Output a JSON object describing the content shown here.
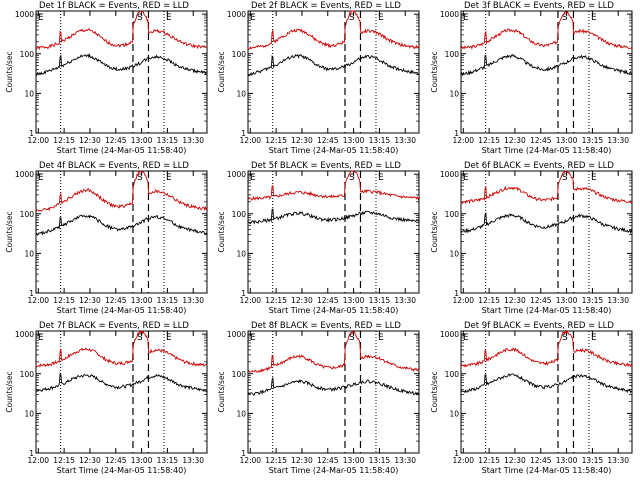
{
  "colors": {
    "events": "#000000",
    "lld": "#cc0000",
    "axis": "#000000"
  },
  "common": {
    "ylabel": "Counts/sec",
    "xlabel": "Start Time (24-Mar-05 11:58:40)",
    "x_ticks": [
      "12:00",
      "12:15",
      "12:30",
      "12:45",
      "13:00",
      "13:15",
      "13:30"
    ],
    "y_ticks": [
      "1",
      "10",
      "100",
      "1000"
    ],
    "markers": [
      "E",
      "S",
      "E"
    ]
  },
  "chart_data": [
    {
      "type": "line",
      "title": "Det 1f BLACK = Events, RED = LLD",
      "xlim": [
        "11:58:40",
        "13:38"
      ],
      "ylim": [
        1,
        1200
      ],
      "y_scale": "log",
      "dotted_at": [
        "11:58:40",
        "12:13",
        "13:13"
      ],
      "dashed_at": [
        "12:55",
        "13:04"
      ],
      "events_profile": [
        30,
        33,
        38,
        45,
        55,
        70,
        85,
        90,
        75,
        55,
        45,
        40,
        42,
        48,
        58,
        75,
        85,
        80,
        65,
        50,
        42,
        38,
        35,
        32
      ],
      "lld_profile": [
        140,
        145,
        155,
        180,
        230,
        300,
        380,
        400,
        330,
        230,
        180,
        160,
        170,
        200,
        260,
        330,
        380,
        360,
        290,
        220,
        180,
        160,
        150,
        145
      ]
    },
    {
      "type": "line",
      "title": "Det 2f BLACK = Events, RED = LLD",
      "xlim": [
        "11:58:40",
        "13:38"
      ],
      "ylim": [
        1,
        1200
      ],
      "y_scale": "log",
      "dotted_at": [
        "11:58:40",
        "12:13",
        "13:13"
      ],
      "dashed_at": [
        "12:55",
        "13:04"
      ],
      "events_profile": [
        30,
        33,
        38,
        45,
        55,
        70,
        85,
        90,
        75,
        55,
        45,
        40,
        42,
        48,
        58,
        75,
        85,
        80,
        65,
        50,
        42,
        38,
        35,
        32
      ],
      "lld_profile": [
        140,
        145,
        155,
        180,
        230,
        300,
        380,
        400,
        330,
        230,
        180,
        160,
        170,
        200,
        260,
        330,
        380,
        360,
        290,
        220,
        180,
        160,
        150,
        145
      ]
    },
    {
      "type": "line",
      "title": "Det 3f BLACK = Events, RED = LLD",
      "xlim": [
        "11:58:40",
        "13:38"
      ],
      "ylim": [
        1,
        1200
      ],
      "y_scale": "log",
      "dotted_at": [
        "11:58:40",
        "12:13",
        "13:13"
      ],
      "dashed_at": [
        "12:55",
        "13:04"
      ],
      "events_profile": [
        30,
        33,
        38,
        45,
        55,
        70,
        85,
        90,
        75,
        55,
        45,
        40,
        42,
        48,
        58,
        75,
        85,
        80,
        65,
        50,
        42,
        38,
        35,
        32
      ],
      "lld_profile": [
        140,
        145,
        155,
        180,
        230,
        300,
        380,
        400,
        330,
        230,
        180,
        160,
        170,
        200,
        260,
        330,
        380,
        360,
        290,
        220,
        180,
        160,
        150,
        145
      ]
    },
    {
      "type": "line",
      "title": "Det 4f BLACK = Events, RED = LLD",
      "xlim": [
        "11:58:40",
        "13:38"
      ],
      "ylim": [
        1,
        1200
      ],
      "y_scale": "log",
      "dotted_at": [
        "11:58:40",
        "12:13",
        "13:13"
      ],
      "dashed_at": [
        "12:55",
        "13:04"
      ],
      "events_profile": [
        30,
        33,
        38,
        45,
        55,
        70,
        85,
        90,
        75,
        55,
        45,
        40,
        42,
        48,
        58,
        75,
        85,
        80,
        65,
        50,
        42,
        38,
        35,
        32
      ],
      "lld_profile": [
        120,
        125,
        140,
        170,
        220,
        290,
        370,
        400,
        320,
        220,
        170,
        150,
        160,
        190,
        250,
        320,
        370,
        350,
        280,
        210,
        170,
        150,
        140,
        135
      ]
    },
    {
      "type": "line",
      "title": "Det 5f BLACK = Events, RED = LLD",
      "xlim": [
        "11:58:40",
        "13:38"
      ],
      "ylim": [
        1,
        1200
      ],
      "y_scale": "log",
      "dotted_at": [
        "11:58:40",
        "12:13",
        "13:13"
      ],
      "dashed_at": [
        "12:55",
        "13:04"
      ],
      "events_profile": [
        60,
        62,
        65,
        70,
        78,
        90,
        100,
        105,
        95,
        80,
        72,
        70,
        72,
        78,
        88,
        100,
        108,
        105,
        95,
        82,
        75,
        70,
        66,
        64
      ],
      "lld_profile": [
        240,
        245,
        250,
        260,
        280,
        310,
        340,
        350,
        330,
        300,
        280,
        270,
        275,
        290,
        320,
        350,
        370,
        360,
        330,
        300,
        280,
        265,
        255,
        250
      ]
    },
    {
      "type": "line",
      "title": "Det 6f BLACK = Events, RED = LLD",
      "xlim": [
        "11:58:40",
        "13:38"
      ],
      "ylim": [
        1,
        1200
      ],
      "y_scale": "log",
      "dotted_at": [
        "11:58:40",
        "12:13",
        "13:13"
      ],
      "dashed_at": [
        "12:55",
        "13:04"
      ],
      "events_profile": [
        35,
        38,
        42,
        50,
        60,
        75,
        88,
        92,
        80,
        60,
        50,
        45,
        48,
        54,
        64,
        80,
        90,
        85,
        70,
        55,
        47,
        42,
        39,
        36
      ],
      "lld_profile": [
        200,
        205,
        215,
        240,
        290,
        360,
        440,
        460,
        390,
        290,
        240,
        220,
        230,
        260,
        320,
        390,
        440,
        420,
        350,
        280,
        240,
        220,
        210,
        205
      ]
    },
    {
      "type": "line",
      "title": "Det 7f BLACK = Events, RED = LLD",
      "xlim": [
        "11:58:40",
        "13:38"
      ],
      "ylim": [
        1,
        1200
      ],
      "y_scale": "log",
      "dotted_at": [
        "11:58:40",
        "12:13",
        "13:13"
      ],
      "dashed_at": [
        "12:55",
        "13:04"
      ],
      "events_profile": [
        38,
        40,
        44,
        50,
        60,
        75,
        88,
        92,
        80,
        60,
        50,
        46,
        48,
        54,
        64,
        80,
        90,
        85,
        70,
        56,
        48,
        43,
        40,
        38
      ],
      "lld_profile": [
        160,
        165,
        175,
        200,
        250,
        320,
        400,
        420,
        350,
        250,
        200,
        180,
        190,
        220,
        280,
        350,
        400,
        380,
        310,
        240,
        200,
        180,
        170,
        165
      ]
    },
    {
      "type": "line",
      "title": "Det 8f BLACK = Events, RED = LLD",
      "xlim": [
        "11:58:40",
        "13:38"
      ],
      "ylim": [
        1,
        1200
      ],
      "y_scale": "log",
      "dotted_at": [
        "11:58:40",
        "12:13",
        "13:13"
      ],
      "dashed_at": [
        "12:55",
        "13:04"
      ],
      "events_profile": [
        30,
        32,
        35,
        40,
        45,
        52,
        60,
        65,
        58,
        48,
        42,
        40,
        42,
        46,
        52,
        60,
        65,
        62,
        55,
        46,
        40,
        36,
        33,
        31
      ],
      "lld_profile": [
        110,
        115,
        125,
        140,
        170,
        210,
        260,
        280,
        240,
        180,
        150,
        140,
        145,
        165,
        200,
        245,
        280,
        270,
        230,
        185,
        155,
        140,
        130,
        125
      ]
    },
    {
      "type": "line",
      "title": "Det 9f BLACK = Events, RED = LLD",
      "xlim": [
        "11:58:40",
        "13:38"
      ],
      "ylim": [
        1,
        1200
      ],
      "y_scale": "log",
      "dotted_at": [
        "11:58:40",
        "12:13",
        "13:13"
      ],
      "dashed_at": [
        "12:55",
        "13:04"
      ],
      "events_profile": [
        35,
        38,
        42,
        50,
        60,
        75,
        88,
        92,
        80,
        60,
        50,
        45,
        48,
        54,
        64,
        80,
        90,
        85,
        70,
        55,
        47,
        42,
        39,
        36
      ],
      "lld_profile": [
        160,
        165,
        175,
        200,
        250,
        320,
        400,
        420,
        350,
        250,
        200,
        180,
        190,
        220,
        280,
        350,
        400,
        380,
        310,
        240,
        200,
        180,
        170,
        165
      ]
    }
  ]
}
